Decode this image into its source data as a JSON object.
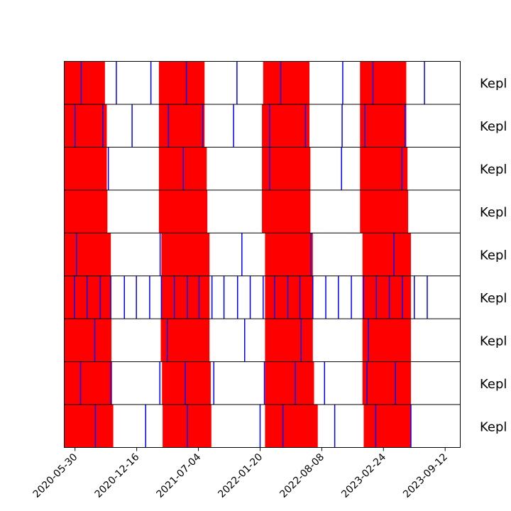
{
  "chart_data": {
    "type": "timeline",
    "title": "",
    "xlabel": "",
    "ylabel": "",
    "xlim": [
      "2020-04-25",
      "2023-10-31"
    ],
    "x_ticks": [
      "2020-05-30",
      "2020-12-16",
      "2021-07-04",
      "2022-01-20",
      "2022-08-08",
      "2023-02-24",
      "2023-09-12"
    ],
    "grid": false,
    "colors": {
      "active": "#ff0000",
      "marker": "#0000ff",
      "border": "#000000",
      "background": "#ffffff"
    },
    "rows": [
      {
        "label": "Kepl",
        "segments": [
          [
            "2020-04-25",
            "2020-09-04"
          ],
          [
            "2021-02-26",
            "2021-07-24"
          ],
          [
            "2022-01-30",
            "2022-06-29"
          ],
          [
            "2022-12-10",
            "2023-05-09"
          ]
        ],
        "markers": [
          "2020-06-19",
          "2020-10-11",
          "2021-01-31",
          "2021-05-26",
          "2021-11-06",
          "2022-03-28",
          "2022-10-15",
          "2023-01-21",
          "2023-07-07"
        ]
      },
      {
        "label": "Kepl",
        "segments": [
          [
            "2020-04-25",
            "2020-09-10"
          ],
          [
            "2021-02-26",
            "2021-07-24"
          ],
          [
            "2022-01-26",
            "2022-06-29"
          ],
          [
            "2022-12-10",
            "2023-05-09"
          ]
        ],
        "markers": [
          "2020-05-30",
          "2020-08-28",
          "2020-12-01",
          "2021-03-29",
          "2021-07-18",
          "2021-10-26",
          "2022-02-20",
          "2022-06-16",
          "2022-10-13",
          "2022-12-26",
          "2023-05-05"
        ]
      },
      {
        "label": "Kepl",
        "segments": [
          [
            "2020-04-25",
            "2020-09-10"
          ],
          [
            "2021-02-26",
            "2021-07-31"
          ],
          [
            "2022-01-26",
            "2022-07-02"
          ],
          [
            "2022-12-10",
            "2023-05-13"
          ]
        ],
        "markers": [
          "2020-09-15",
          "2021-05-16",
          "2022-02-20",
          "2022-10-11",
          "2023-04-25"
        ]
      },
      {
        "label": "Kepl",
        "segments": [
          [
            "2020-04-25",
            "2020-09-12"
          ],
          [
            "2021-02-26",
            "2021-08-02"
          ],
          [
            "2022-01-26",
            "2022-07-02"
          ],
          [
            "2022-12-10",
            "2023-05-15"
          ]
        ],
        "markers": []
      },
      {
        "label": "Kepl",
        "segments": [
          [
            "2020-04-25",
            "2020-09-23"
          ],
          [
            "2021-03-06",
            "2021-08-09"
          ],
          [
            "2022-02-05",
            "2022-07-10"
          ],
          [
            "2022-12-18",
            "2023-05-24"
          ]
        ],
        "markers": [
          "2020-06-04",
          "2021-03-02",
          "2021-11-22",
          "2022-07-04",
          "2023-03-30"
        ]
      },
      {
        "label": "Kepl",
        "segments": [
          [
            "2020-04-25",
            "2020-09-23"
          ],
          [
            "2021-03-06",
            "2021-08-09"
          ],
          [
            "2022-02-05",
            "2022-07-10"
          ],
          [
            "2022-12-18",
            "2023-05-24"
          ]
        ],
        "markers": [
          "2020-05-28",
          "2020-07-08",
          "2020-08-20",
          "2020-09-23",
          "2020-11-06",
          "2020-12-15",
          "2021-01-27",
          "2021-03-06",
          "2021-04-17",
          "2021-05-29",
          "2021-07-06",
          "2021-08-17",
          "2021-09-25",
          "2021-11-08",
          "2021-12-19",
          "2022-01-30",
          "2022-03-08",
          "2022-04-20",
          "2022-05-29",
          "2022-07-10",
          "2022-08-21",
          "2022-10-01",
          "2022-11-12",
          "2022-12-21",
          "2023-02-01",
          "2023-03-15",
          "2023-04-26",
          "2023-06-04",
          "2023-07-16"
        ]
      },
      {
        "label": "Kepl",
        "segments": [
          [
            "2020-04-25",
            "2020-09-25"
          ],
          [
            "2021-03-04",
            "2021-08-09"
          ],
          [
            "2022-02-05",
            "2022-07-10"
          ],
          [
            "2022-12-18",
            "2023-05-24"
          ]
        ],
        "markers": [
          "2020-08-02",
          "2021-03-25",
          "2021-12-01",
          "2022-06-02",
          "2023-01-06"
        ]
      },
      {
        "label": "Kepl",
        "segments": [
          [
            "2020-04-25",
            "2020-09-27"
          ],
          [
            "2021-03-08",
            "2021-08-13"
          ],
          [
            "2022-02-05",
            "2022-07-14"
          ],
          [
            "2022-12-18",
            "2023-05-24"
          ]
        ],
        "markers": [
          "2020-06-17",
          "2020-09-23",
          "2021-03-01",
          "2021-05-22",
          "2021-08-23",
          "2022-02-03",
          "2022-05-14",
          "2022-08-17",
          "2023-01-02",
          "2023-04-04"
        ]
      },
      {
        "label": "Kepl",
        "segments": [
          [
            "2020-04-25",
            "2020-10-01"
          ],
          [
            "2021-03-10",
            "2021-08-15"
          ],
          [
            "2022-02-05",
            "2022-07-26"
          ],
          [
            "2022-12-22",
            "2023-05-24"
          ]
        ],
        "markers": [
          "2020-08-04",
          "2021-01-14",
          "2021-05-29",
          "2022-01-20",
          "2022-04-04",
          "2022-09-19",
          "2023-01-30",
          "2023-05-24"
        ]
      }
    ]
  }
}
